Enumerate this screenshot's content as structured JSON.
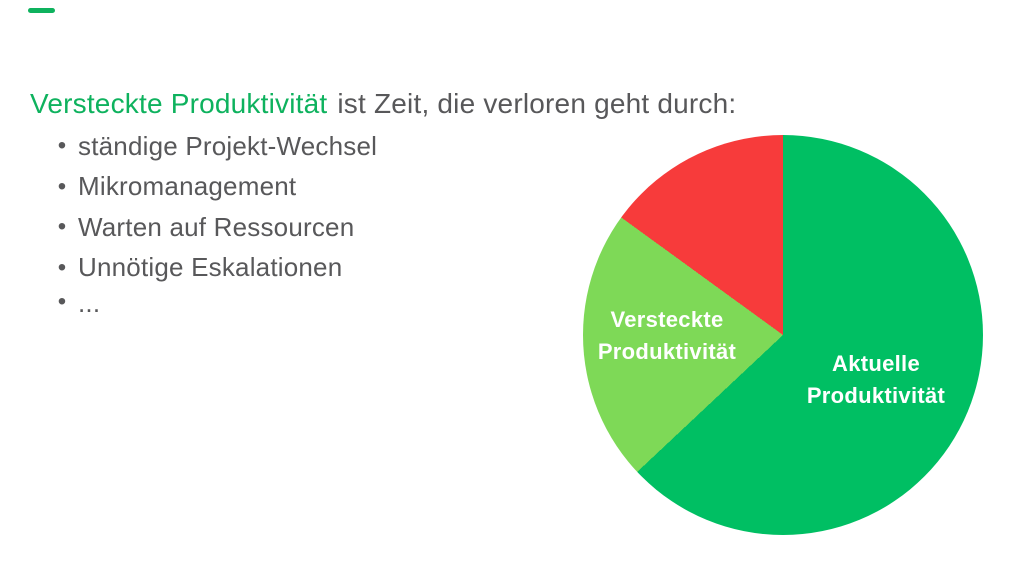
{
  "slide": {
    "heading": {
      "highlight": "Versteckte Produktivität",
      "rest": "ist Zeit, die verloren geht durch:"
    },
    "bullet_glyph": "•",
    "bullets": [
      "ständige  Projekt-Wechsel",
      "Mikromanagement",
      "Warten auf Ressourcen",
      "Unnötige Eskalationen",
      "..."
    ],
    "colors": {
      "highlight_green": "#0EB25E",
      "text_gray": "#58585A",
      "pie_green": "#00BF63",
      "pie_light_green": "#7ED957",
      "pie_red": "#F73B3B",
      "background": "#FFFFFF"
    }
  },
  "chart_data": {
    "type": "pie",
    "title": "",
    "start_angle_deg": 0,
    "direction": "clockwise",
    "legend": "none",
    "slices": [
      {
        "label": "Aktuelle Produktivität",
        "value_pct": 63,
        "color": "#00BF63",
        "label_lines": [
          "Aktuelle",
          "Produktivität"
        ]
      },
      {
        "label": "Versteckte Produktivität",
        "value_pct": 22,
        "color": "#7ED957",
        "label_lines": [
          "Versteckte",
          "Produktivität"
        ]
      },
      {
        "label": "",
        "value_pct": 15,
        "color": "#F73B3B",
        "label_lines": []
      }
    ]
  }
}
